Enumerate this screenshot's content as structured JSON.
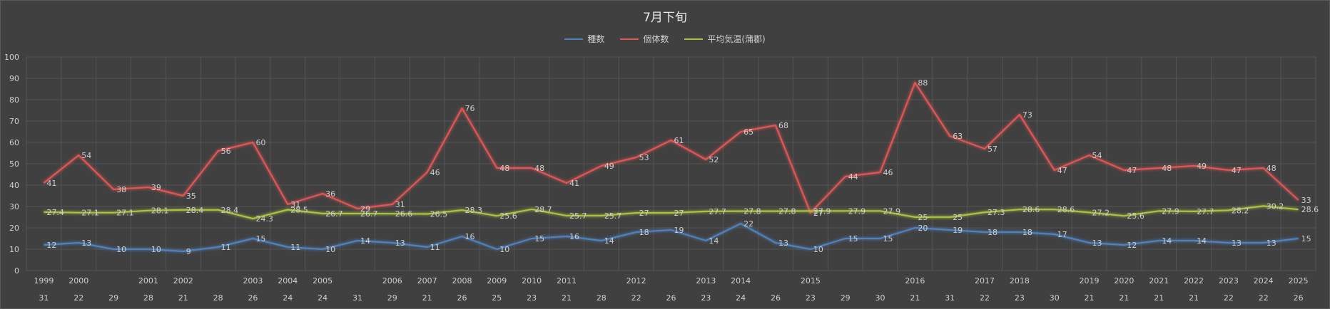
{
  "chart_data": {
    "type": "line",
    "title": "7月下旬",
    "ylim": [
      0,
      100
    ],
    "yticks": [
      0,
      10,
      20,
      30,
      40,
      50,
      60,
      70,
      80,
      90,
      100
    ],
    "grid": true,
    "legend_position": "top",
    "categories_top": [
      "1999",
      "2000",
      "",
      "2001",
      "2002",
      "",
      "2003",
      "2004",
      "2005",
      "",
      "2006",
      "2007",
      "2008",
      "2009",
      "2010",
      "2011",
      "",
      "2012",
      "",
      "2013",
      "2014",
      "",
      "2015",
      "",
      "",
      "2016",
      "",
      "2017",
      "2018",
      "",
      "2019",
      "2020",
      "2021",
      "2022",
      "2023",
      "2024",
      "2025"
    ],
    "categories_bottom": [
      "31",
      "22",
      "29",
      "28",
      "21",
      "28",
      "26",
      "24",
      "24",
      "31",
      "29",
      "21",
      "26",
      "25",
      "23",
      "21",
      "28",
      "22",
      "26",
      "23",
      "24",
      "26",
      "23",
      "29",
      "30",
      "21",
      "31",
      "22",
      "23",
      "30",
      "21",
      "21",
      "21",
      "21",
      "22",
      "22",
      "26"
    ],
    "series": [
      {
        "name": "種数",
        "color": "#4f81bd",
        "values": [
          12,
          13,
          10,
          10,
          9,
          11,
          15,
          11,
          10,
          14,
          13,
          11,
          16,
          10,
          15,
          16,
          14,
          18,
          19,
          14,
          22,
          13,
          10,
          15,
          15,
          20,
          19,
          18,
          18,
          17,
          13,
          12,
          14,
          14,
          13,
          13,
          15
        ],
        "labels": [
          "12",
          "13",
          "10",
          "10",
          "9",
          "11",
          "15",
          "11",
          "10",
          "14",
          "13",
          "11",
          "16",
          "10",
          "15",
          "16",
          "14",
          "18",
          "19",
          "14",
          "22",
          "13",
          "10",
          "15",
          "15",
          "20",
          "19",
          "18",
          "18",
          "17",
          "13",
          "12",
          "14",
          "14",
          "13",
          "13",
          "15"
        ]
      },
      {
        "name": "個体数",
        "color": "#e05555",
        "values": [
          41,
          54,
          38,
          39,
          35,
          56,
          60,
          31,
          36,
          29,
          31,
          46,
          76,
          48,
          48,
          41,
          49,
          53,
          61,
          52,
          65,
          68,
          27,
          44,
          46,
          88,
          63,
          57,
          73,
          47,
          54,
          47,
          48,
          49,
          47,
          48,
          33
        ],
        "labels": [
          "41",
          "54",
          "38",
          "39",
          "35",
          "56",
          "60",
          "31",
          "36",
          "29",
          "31",
          "46",
          "76",
          "48",
          "48",
          "41",
          "49",
          "53",
          "61",
          "52",
          "65",
          "68",
          "27",
          "44",
          "46",
          "88",
          "63",
          "57",
          "73",
          "47",
          "54",
          "47",
          "48",
          "49",
          "47",
          "48",
          "33"
        ]
      },
      {
        "name": "平均気温(蒲郡)",
        "color": "#a9c23f",
        "values": [
          27.4,
          27.1,
          27.1,
          28.1,
          28.4,
          28.4,
          24.3,
          28.5,
          26.7,
          26.7,
          26.6,
          26.5,
          28.3,
          25.6,
          28.7,
          25.7,
          25.7,
          27,
          27,
          27.7,
          27.8,
          27.8,
          27.9,
          27.9,
          27.9,
          25,
          25,
          27.3,
          28.6,
          28.6,
          27.2,
          25.6,
          27.9,
          27.7,
          28.2,
          30.2,
          28.6
        ],
        "labels": [
          "27.4",
          "27.1",
          "27.1",
          "28.1",
          "28.4",
          "28.4",
          "24.3",
          "28.5",
          "26.7",
          "26.7",
          "26.6",
          "26.5",
          "28.3",
          "25.6",
          "28.7",
          "25.7",
          "25.7",
          "27",
          "27",
          "27.7",
          "27.8",
          "27.8",
          "27.9",
          "27.9",
          "27.9",
          "25",
          "25",
          "27.3",
          "28.6",
          "28.6",
          "27.2",
          "25.6",
          "27.9",
          "27.7",
          "28.2",
          "30.2",
          "28.6"
        ]
      }
    ]
  }
}
